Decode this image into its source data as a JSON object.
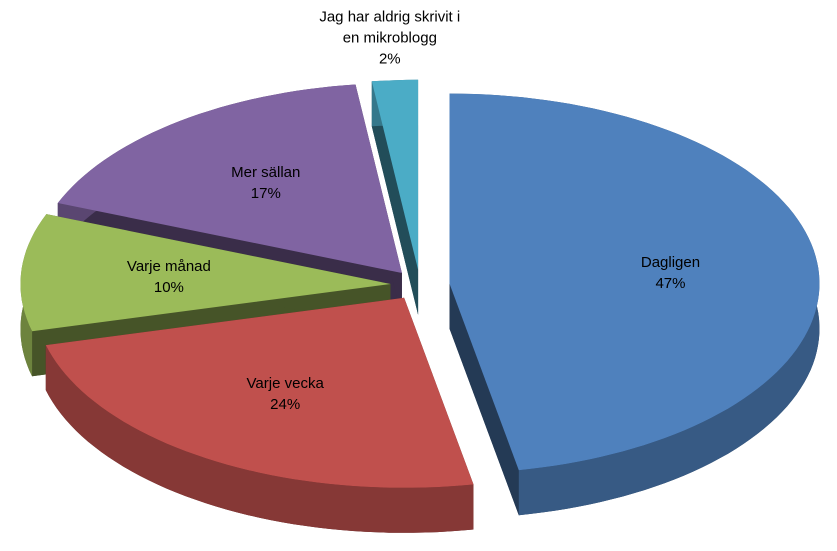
{
  "chart_data": {
    "type": "pie3d",
    "categories": [
      "Dagligen",
      "Varje vecka",
      "Varje månad",
      "Mer sällan",
      "Jag har aldrig skrivit i en mikroblogg"
    ],
    "values": [
      47,
      24,
      10,
      17,
      2
    ],
    "value_labels": [
      "47%",
      "24%",
      "10%",
      "17%",
      "2%"
    ],
    "colors": [
      "#4f81bd",
      "#c0504d",
      "#9bbb59",
      "#8064a2",
      "#4bacc6"
    ]
  }
}
